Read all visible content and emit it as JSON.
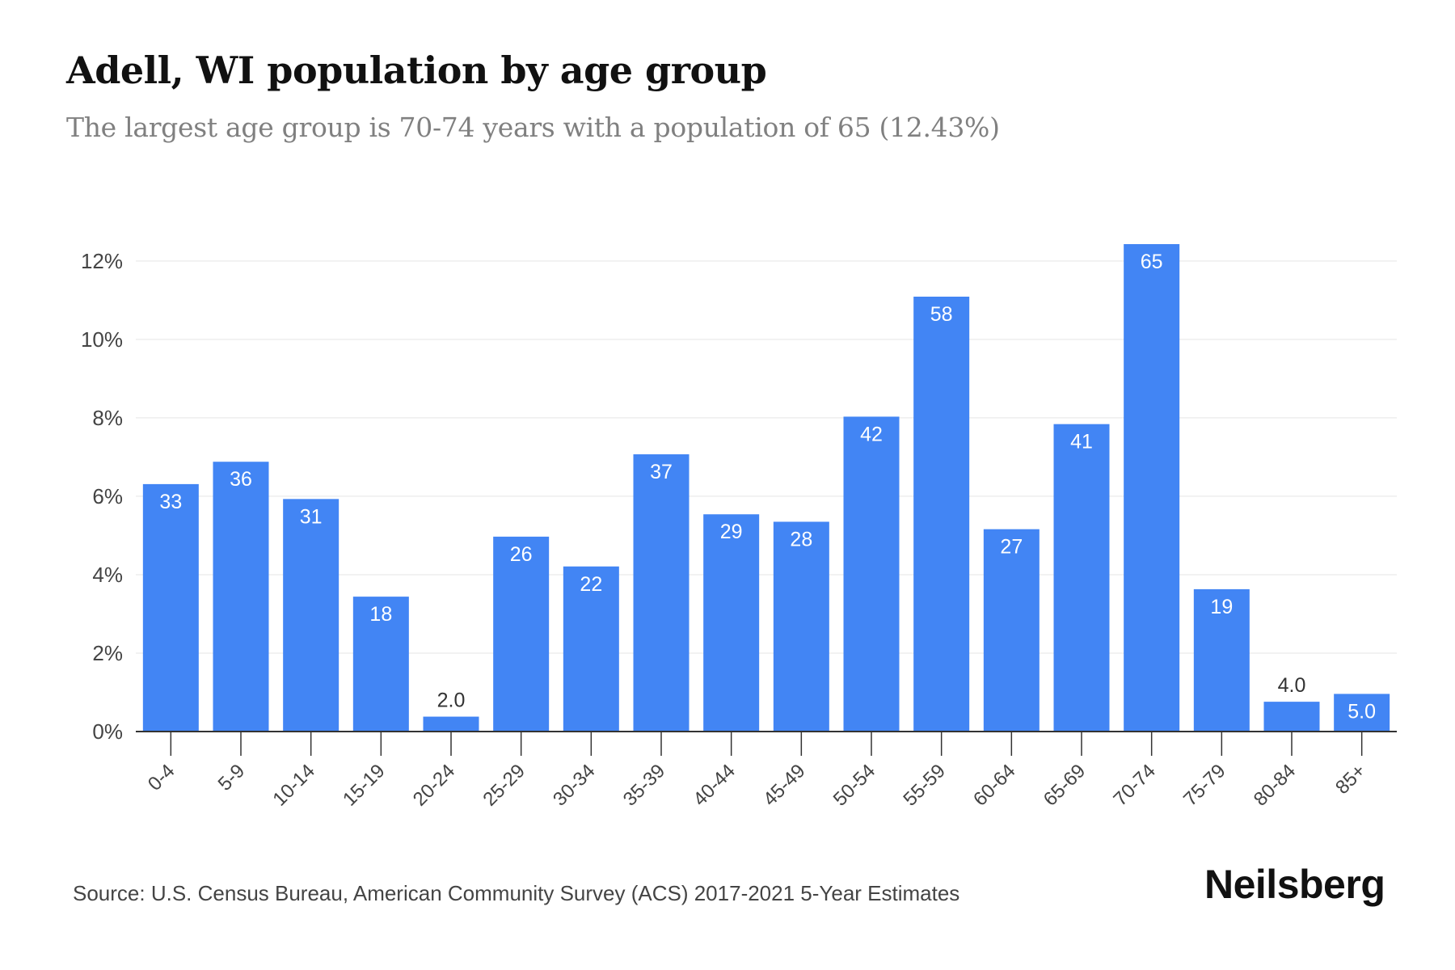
{
  "title": "Adell, WI population by age group",
  "subtitle": "The largest age group is 70-74 years with a population of 65 (12.43%)",
  "source": "Source: U.S. Census Bureau, American Community Survey (ACS) 2017-2021 5-Year Estimates",
  "brand": "Neilsberg",
  "colors": {
    "bar": "#4285f4",
    "grid": "#eeeeee",
    "axis": "#333333",
    "label_inside": "#ffffff",
    "label_outside": "#333333"
  },
  "chart_data": {
    "type": "bar",
    "categories": [
      "0-4",
      "5-9",
      "10-14",
      "15-19",
      "20-24",
      "25-29",
      "30-34",
      "35-39",
      "40-44",
      "45-49",
      "50-54",
      "55-59",
      "60-64",
      "65-69",
      "70-74",
      "75-79",
      "80-84",
      "85+"
    ],
    "values": [
      6.31,
      6.88,
      5.93,
      3.44,
      0.38,
      4.97,
      4.21,
      7.07,
      5.54,
      5.35,
      8.03,
      11.09,
      5.16,
      7.84,
      12.43,
      3.63,
      0.76,
      0.96
    ],
    "data_labels": [
      "33",
      "36",
      "31",
      "18",
      "2.0",
      "26",
      "22",
      "37",
      "29",
      "28",
      "42",
      "58",
      "27",
      "41",
      "65",
      "19",
      "4.0",
      "5.0"
    ],
    "ylim": [
      0,
      12.43
    ],
    "yticks": [
      0,
      2,
      4,
      6,
      8,
      10,
      12
    ],
    "ytick_labels": [
      "0%",
      "2%",
      "4%",
      "6%",
      "8%",
      "10%",
      "12%"
    ],
    "grid": true
  }
}
